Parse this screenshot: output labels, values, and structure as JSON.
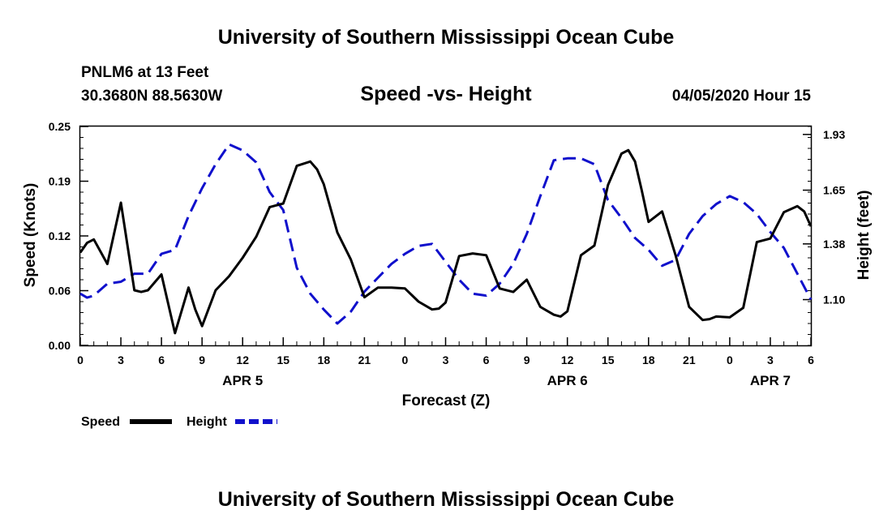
{
  "header": {
    "title_top": "University of Southern Mississippi Ocean Cube",
    "station": "PNLM6 at 13 Feet",
    "coords": "30.3680N 88.5630W",
    "subtitle": "Speed -vs- Height",
    "date": "04/05/2020 Hour 15"
  },
  "footer": {
    "title_bottom": "University of Southern Mississippi Ocean Cube"
  },
  "chart_data": {
    "type": "line",
    "title": "Speed -vs- Height",
    "xlabel": "Forecast (Z)",
    "ylabel_left": "Speed (Knots)",
    "ylabel_right": "Height (feet)",
    "x_hours_range": [
      0,
      54
    ],
    "ylim_left": [
      0,
      0.25
    ],
    "ylim_right": [
      0.87,
      1.97
    ],
    "x_ticks": [
      {
        "h": 0,
        "label": "0"
      },
      {
        "h": 3,
        "label": "3"
      },
      {
        "h": 6,
        "label": "6"
      },
      {
        "h": 9,
        "label": "9"
      },
      {
        "h": 12,
        "label": "12"
      },
      {
        "h": 15,
        "label": "15"
      },
      {
        "h": 18,
        "label": "18"
      },
      {
        "h": 21,
        "label": "21"
      },
      {
        "h": 24,
        "label": "0"
      },
      {
        "h": 27,
        "label": "3"
      },
      {
        "h": 30,
        "label": "6"
      },
      {
        "h": 33,
        "label": "9"
      },
      {
        "h": 36,
        "label": "12"
      },
      {
        "h": 39,
        "label": "15"
      },
      {
        "h": 42,
        "label": "18"
      },
      {
        "h": 45,
        "label": "21"
      },
      {
        "h": 48,
        "label": "0"
      },
      {
        "h": 51,
        "label": "3"
      },
      {
        "h": 54,
        "label": "6"
      }
    ],
    "date_labels": [
      {
        "h": 12,
        "label": "APR 5"
      },
      {
        "h": 36,
        "label": "APR 6"
      },
      {
        "h": 51,
        "label": "APR 7"
      }
    ],
    "left_ticks": [
      {
        "v": 0.0,
        "label": "0.00"
      },
      {
        "v": 0.0625,
        "label": "0.06"
      },
      {
        "v": 0.125,
        "label": "0.12"
      },
      {
        "v": 0.1875,
        "label": "0.19"
      },
      {
        "v": 0.25,
        "label": "0.25"
      }
    ],
    "right_ticks": [
      {
        "v": 1.1,
        "label": "1.10"
      },
      {
        "v": 1.38,
        "label": "1.38"
      },
      {
        "v": 1.65,
        "label": "1.65"
      },
      {
        "v": 1.93,
        "label": "1.93"
      }
    ],
    "legend": [
      {
        "name": "Speed",
        "color": "#000000",
        "style": "solid"
      },
      {
        "name": "Height",
        "color": "#1010cc",
        "style": "dashed"
      }
    ],
    "series": [
      {
        "name": "Speed",
        "axis": "left",
        "color": "#000000",
        "x": [
          0,
          0.5,
          1,
          2,
          3,
          4,
          4.5,
          5,
          6,
          7,
          8,
          8.5,
          9,
          10,
          11,
          12,
          13,
          14,
          15,
          16,
          17,
          17.5,
          18,
          19,
          20,
          21,
          22,
          23,
          24,
          25,
          26,
          26.5,
          27,
          28,
          29,
          30,
          31,
          32,
          33,
          34,
          35,
          35.5,
          36,
          37,
          38,
          39,
          40,
          40.5,
          41,
          41.5,
          42,
          43,
          44,
          45,
          46,
          46.5,
          47,
          48,
          49,
          50,
          51,
          52,
          53,
          53.5,
          54
        ],
        "values": [
          0.106,
          0.117,
          0.121,
          0.093,
          0.163,
          0.063,
          0.061,
          0.063,
          0.081,
          0.014,
          0.066,
          0.041,
          0.022,
          0.063,
          0.079,
          0.1,
          0.124,
          0.158,
          0.162,
          0.205,
          0.21,
          0.201,
          0.184,
          0.129,
          0.098,
          0.055,
          0.066,
          0.066,
          0.065,
          0.05,
          0.041,
          0.042,
          0.049,
          0.102,
          0.105,
          0.103,
          0.065,
          0.061,
          0.075,
          0.044,
          0.035,
          0.033,
          0.039,
          0.103,
          0.114,
          0.183,
          0.219,
          0.223,
          0.21,
          0.177,
          0.141,
          0.153,
          0.103,
          0.044,
          0.029,
          0.03,
          0.033,
          0.032,
          0.043,
          0.118,
          0.122,
          0.152,
          0.159,
          0.153,
          0.136
        ]
      },
      {
        "name": "Height",
        "axis": "right",
        "color": "#1010cc",
        "x": [
          0,
          0.5,
          1,
          2,
          3,
          4,
          5,
          6,
          7,
          8,
          9,
          10,
          11,
          12,
          13,
          14,
          15,
          16,
          17,
          18,
          19,
          20,
          21,
          22,
          23,
          24,
          25,
          26,
          27,
          28,
          29,
          30,
          31,
          32,
          33,
          34,
          35,
          36,
          37,
          38,
          39,
          40,
          41,
          42,
          43,
          44,
          45,
          46,
          47,
          48,
          49,
          50,
          51,
          52,
          53,
          54
        ],
        "values": [
          1.13,
          1.11,
          1.12,
          1.18,
          1.19,
          1.23,
          1.23,
          1.33,
          1.35,
          1.52,
          1.66,
          1.78,
          1.88,
          1.85,
          1.79,
          1.64,
          1.55,
          1.26,
          1.13,
          1.05,
          0.98,
          1.04,
          1.14,
          1.21,
          1.28,
          1.33,
          1.37,
          1.38,
          1.29,
          1.2,
          1.13,
          1.12,
          1.18,
          1.28,
          1.43,
          1.62,
          1.8,
          1.81,
          1.81,
          1.78,
          1.6,
          1.51,
          1.41,
          1.35,
          1.27,
          1.3,
          1.43,
          1.52,
          1.58,
          1.62,
          1.59,
          1.53,
          1.44,
          1.36,
          1.23,
          1.1
        ]
      }
    ]
  }
}
